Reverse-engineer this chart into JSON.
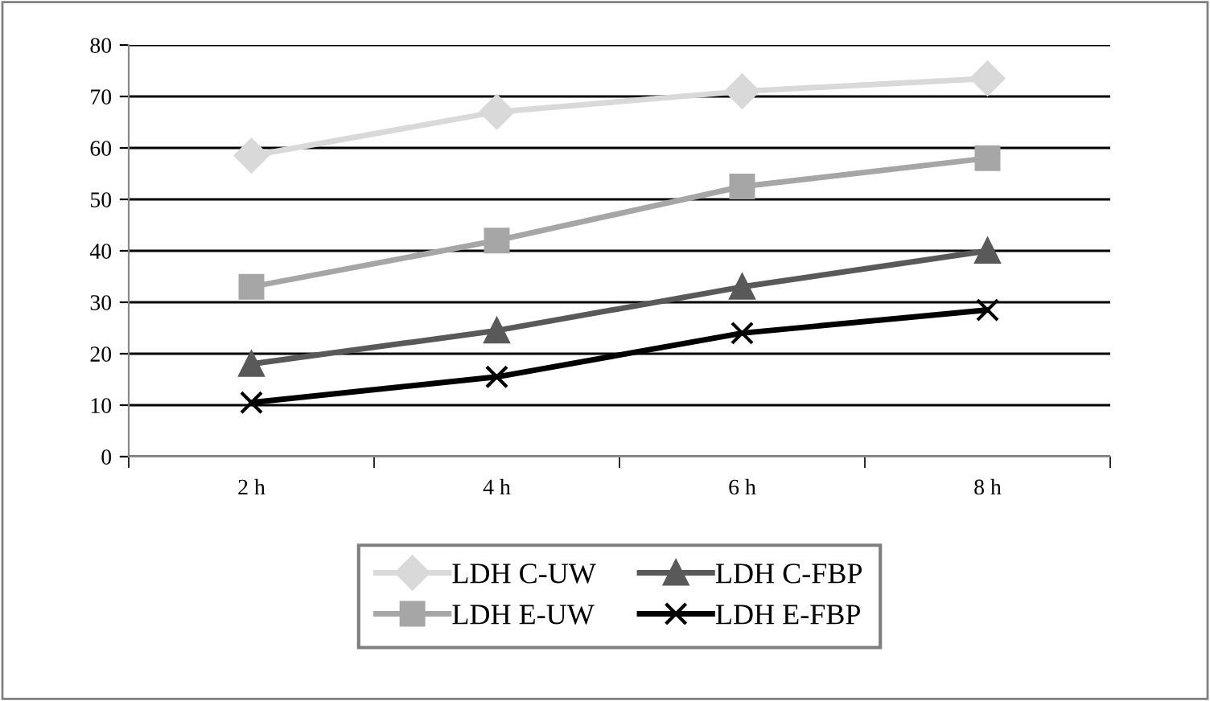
{
  "chart_data": {
    "type": "line",
    "categories": [
      "2 h",
      "4 h",
      "6 h",
      "8 h"
    ],
    "series": [
      {
        "name": "LDH C-UW",
        "color": "#d9d9d9",
        "marker": "diamond",
        "values": [
          58.5,
          67,
          71,
          73.5
        ]
      },
      {
        "name": "LDH E-UW",
        "color": "#a6a6a6",
        "marker": "square",
        "values": [
          33,
          42,
          52.5,
          58
        ]
      },
      {
        "name": "LDH C-FBP",
        "color": "#595959",
        "marker": "triangle",
        "values": [
          18,
          24.5,
          33,
          40
        ]
      },
      {
        "name": "LDH E-FBP",
        "color": "#000000",
        "marker": "cross",
        "values": [
          10.5,
          15.5,
          24,
          28.5
        ]
      }
    ],
    "ylim": [
      0,
      80
    ],
    "yticks": [
      0,
      10,
      20,
      30,
      40,
      50,
      60,
      70,
      80
    ],
    "grid": "y",
    "legend": "bottom"
  }
}
